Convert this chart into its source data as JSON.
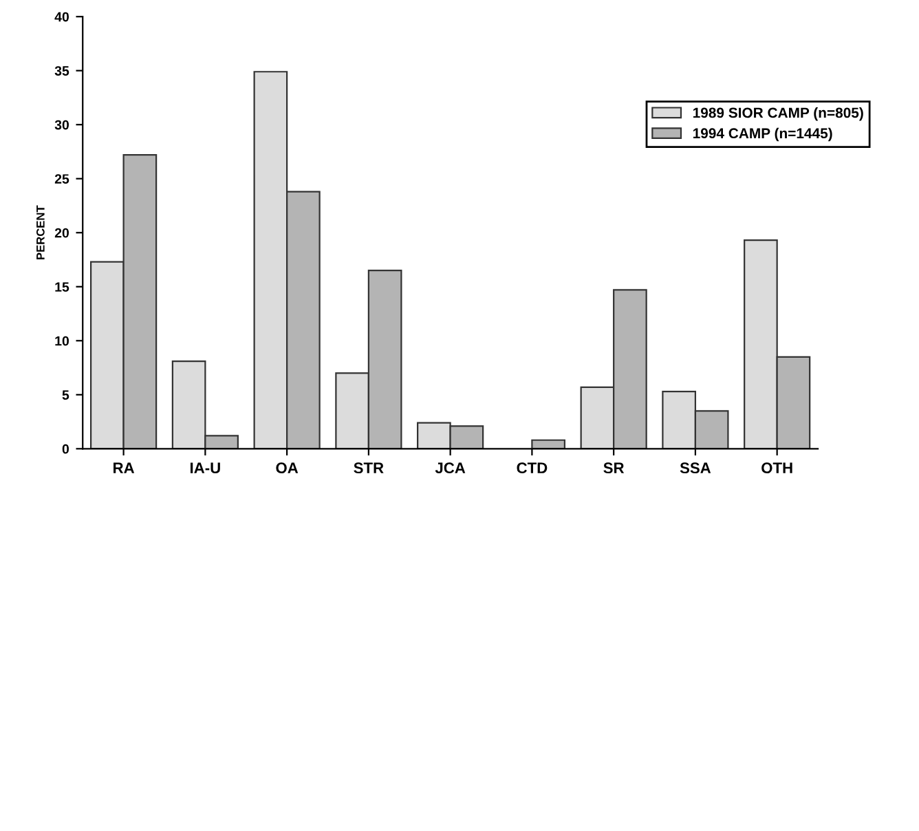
{
  "chart_data": {
    "type": "bar",
    "ylabel": "PERCENT",
    "categories": [
      "RA",
      "IA-U",
      "OA",
      "STR",
      "JCA",
      "CTD",
      "SR",
      "SSA",
      "OTH"
    ],
    "series": [
      {
        "name": "1989 SIOR CAMP (n=805)",
        "color": "#dcdcdc",
        "values": [
          17.3,
          8.1,
          34.9,
          7.0,
          2.4,
          null,
          5.7,
          5.3,
          19.3
        ]
      },
      {
        "name": "1994 CAMP (n=1445)",
        "color": "#b4b4b4",
        "values": [
          27.2,
          1.2,
          23.8,
          16.5,
          2.1,
          0.8,
          14.7,
          3.5,
          8.5
        ]
      }
    ],
    "ylim": [
      0,
      40
    ],
    "yticks": [
      0,
      5,
      10,
      15,
      20,
      25,
      30,
      35,
      40
    ],
    "grid": false,
    "legend": "top right"
  }
}
